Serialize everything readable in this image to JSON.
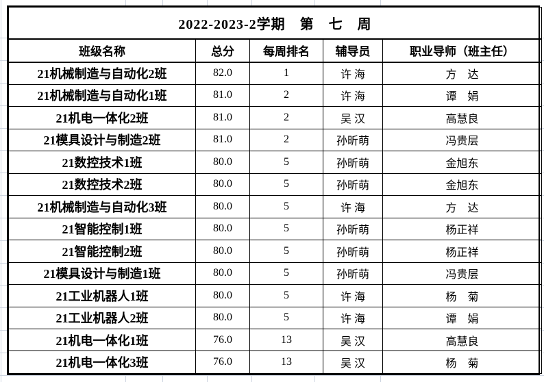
{
  "title": "2022-2023-2学期　第　七　周",
  "table": {
    "headers": [
      "班级名称",
      "总分",
      "每周排名",
      "辅导员",
      "职业导师（班主任）"
    ],
    "rows": [
      [
        "21机械制造与自动化2班",
        "82.0",
        "1",
        "许 海",
        "方　达"
      ],
      [
        "21机械制造与自动化1班",
        "81.0",
        "2",
        "许 海",
        "谭　娟"
      ],
      [
        "21机电一体化2班",
        "81.0",
        "2",
        "吴 汉",
        "高慧良"
      ],
      [
        "21模具设计与制造2班",
        "81.0",
        "2",
        "孙昕萌",
        "冯贵层"
      ],
      [
        "21数控技术1班",
        "80.0",
        "5",
        "孙昕萌",
        "金旭东"
      ],
      [
        "21数控技术2班",
        "80.0",
        "5",
        "孙昕萌",
        "金旭东"
      ],
      [
        "21机械制造与自动化3班",
        "80.0",
        "5",
        "许 海",
        "方　达"
      ],
      [
        "21智能控制1班",
        "80.0",
        "5",
        "孙昕萌",
        "杨正祥"
      ],
      [
        "21智能控制2班",
        "80.0",
        "5",
        "孙昕萌",
        "杨正祥"
      ],
      [
        "21模具设计与制造1班",
        "80.0",
        "5",
        "孙昕萌",
        "冯贵层"
      ],
      [
        "21工业机器人1班",
        "80.0",
        "5",
        "许 海",
        "杨　菊"
      ],
      [
        "21工业机器人2班",
        "80.0",
        "5",
        "许 海",
        "谭　娟"
      ],
      [
        "21机电一体化1班",
        "76.0",
        "13",
        "吴 汉",
        "高慧良"
      ],
      [
        "21机电一体化3班",
        "76.0",
        "13",
        "吴 汉",
        "杨　菊"
      ]
    ]
  },
  "colors": {
    "border": "#000000",
    "text": "#000000",
    "background": "#ffffff",
    "margin_gridline": "#cdd4e0"
  }
}
